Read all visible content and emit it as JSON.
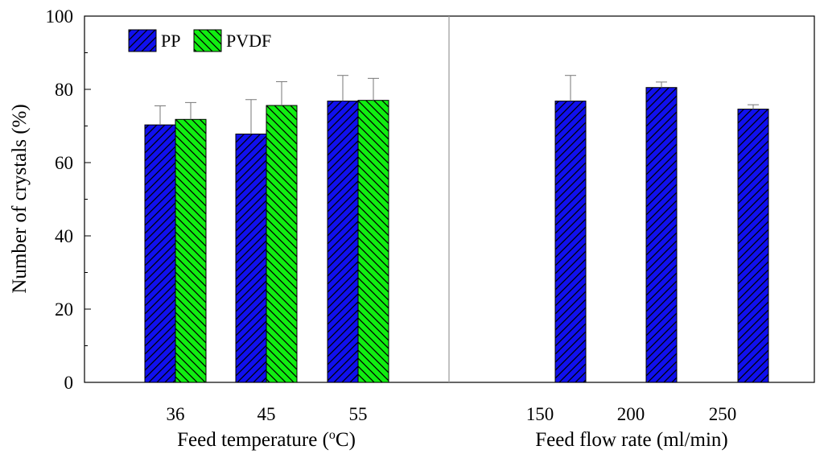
{
  "chart_data": {
    "type": "bar",
    "ylabel": "Number of crystals (%)",
    "ylim": [
      0,
      100
    ],
    "yticks": [
      0,
      20,
      40,
      60,
      80,
      100
    ],
    "colors": {
      "PP": "#1010ee",
      "PVDF": "#11ee11"
    },
    "legend": {
      "position": "top-left",
      "entries": [
        "PP",
        "PVDF"
      ]
    },
    "panels": [
      {
        "xlabel_prefix": "Feed temperature (",
        "xlabel_sup": "o",
        "xlabel_suffix": "C)",
        "categories": [
          "36",
          "45",
          "55"
        ],
        "series": [
          {
            "name": "PP",
            "values": [
              70.3,
              67.8,
              76.8
            ],
            "errors": [
              5.2,
              9.4,
              7.0
            ]
          },
          {
            "name": "PVDF",
            "values": [
              71.8,
              75.6,
              77.0
            ],
            "errors": [
              4.6,
              6.5,
              6.0
            ]
          }
        ]
      },
      {
        "xlabel": "Feed flow rate (ml/min)",
        "categories": [
          "150",
          "200",
          "250"
        ],
        "series": [
          {
            "name": "PP",
            "values": [
              76.8,
              80.5,
              74.6
            ],
            "errors": [
              7.0,
              1.5,
              1.2
            ]
          }
        ]
      }
    ]
  }
}
